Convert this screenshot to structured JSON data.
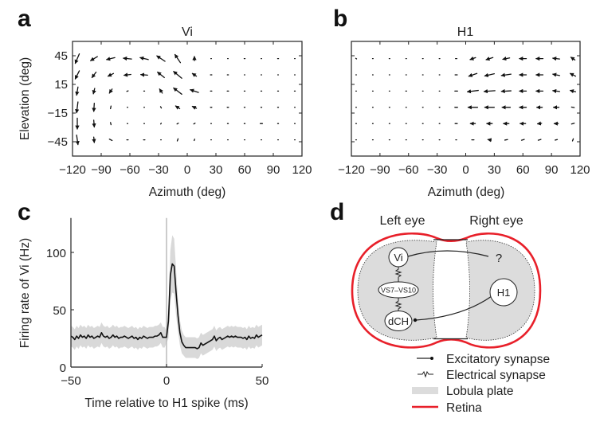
{
  "panel_labels": {
    "a": "a",
    "b": "b",
    "c": "c",
    "d": "d"
  },
  "chart_data": [
    {
      "type": "quiver",
      "title": "Vi",
      "xlabel": "Azimuth (deg)",
      "ylabel": "Elevation (deg)",
      "xlim": [
        -120,
        120
      ],
      "ylim": [
        -60,
        60
      ],
      "xticks": [
        "−120",
        "−90",
        "−60",
        "−30",
        "0",
        "30",
        "60",
        "90",
        "120"
      ],
      "xtick_values": [
        -120,
        -90,
        -60,
        -30,
        0,
        30,
        60,
        90,
        120
      ],
      "yticks": [
        "45",
        "15",
        "−15",
        "−45"
      ],
      "ytick_values": [
        45,
        15,
        -15,
        -45
      ],
      "azimuths": [
        -115,
        -97.5,
        -80,
        -62.5,
        -45,
        -27.5,
        -10,
        7.5,
        25,
        42.5,
        60,
        77.5,
        95,
        112.5
      ],
      "elevations": [
        42,
        25,
        8,
        -9,
        -26,
        -43
      ],
      "vectors": [
        [
          [
            -1.5,
            -3.5
          ],
          [
            -2.5,
            -1.5
          ],
          [
            -3,
            -0.7
          ],
          [
            -3,
            0.3
          ],
          [
            -3,
            0.7
          ],
          [
            -3,
            2
          ],
          [
            -2,
            3
          ],
          [
            0,
            1.5
          ],
          [
            0.2,
            0
          ],
          [
            0.2,
            0
          ],
          [
            0.3,
            0
          ],
          [
            0.2,
            0
          ],
          [
            0.3,
            0
          ],
          [
            0.2,
            0
          ]
        ],
        [
          [
            -1.5,
            -3
          ],
          [
            -1.5,
            -2
          ],
          [
            -2,
            -1
          ],
          [
            -2.5,
            -0.3
          ],
          [
            -2.5,
            0.2
          ],
          [
            -2.5,
            2
          ],
          [
            -3,
            2.5
          ],
          [
            -1.5,
            1
          ],
          [
            -0.5,
            0
          ],
          [
            -0.4,
            0
          ],
          [
            -0.2,
            0
          ],
          [
            -0.2,
            0
          ],
          [
            -0.2,
            0
          ],
          [
            -0.2,
            0
          ]
        ],
        [
          [
            -0.5,
            -3
          ],
          [
            -0.5,
            -2
          ],
          [
            -1,
            -1.5
          ],
          [
            -0.5,
            -0.2
          ],
          [
            -0.3,
            0
          ],
          [
            -1,
            1.5
          ],
          [
            -3,
            2.3
          ],
          [
            -3,
            1
          ],
          [
            -0.5,
            0
          ],
          [
            -0.5,
            0
          ],
          [
            -0.3,
            0
          ],
          [
            -0.3,
            0
          ],
          [
            -0.3,
            0
          ],
          [
            -0.3,
            0
          ]
        ],
        [
          [
            -0.5,
            -4
          ],
          [
            -0.2,
            -3
          ],
          [
            -0.2,
            -1
          ],
          [
            -0.2,
            0
          ],
          [
            -0.2,
            0
          ],
          [
            -0.3,
            0.5
          ],
          [
            -1.5,
            1
          ],
          [
            -1.5,
            0.7
          ],
          [
            -0.5,
            0
          ],
          [
            -0.5,
            0
          ],
          [
            -0.3,
            0
          ],
          [
            -0.3,
            0
          ],
          [
            -0.3,
            0
          ],
          [
            -0.2,
            0
          ]
        ],
        [
          [
            0,
            -4
          ],
          [
            0.2,
            -2.5
          ],
          [
            0.2,
            -0.8
          ],
          [
            0.2,
            0
          ],
          [
            0.2,
            0
          ],
          [
            0.2,
            0.3
          ],
          [
            0.5,
            0.3
          ],
          [
            0.5,
            0.3
          ],
          [
            0.2,
            0
          ],
          [
            0.3,
            0
          ],
          [
            0.3,
            0
          ],
          [
            0.8,
            0
          ],
          [
            0.3,
            0
          ],
          [
            0.2,
            0
          ]
        ],
        [
          [
            0.5,
            -3.5
          ],
          [
            0.2,
            -2
          ],
          [
            1,
            -0.5
          ],
          [
            0.5,
            0
          ],
          [
            0.5,
            0
          ],
          [
            0.2,
            0
          ],
          [
            0.3,
            0.8
          ],
          [
            0.2,
            0.5
          ],
          [
            0.2,
            0
          ],
          [
            0.2,
            0
          ],
          [
            0.2,
            0
          ],
          [
            0.2,
            0
          ],
          [
            0.2,
            0
          ],
          [
            0.2,
            0
          ]
        ]
      ]
    },
    {
      "type": "quiver",
      "title": "H1",
      "xlabel": "Azimuth (deg)",
      "ylabel": "",
      "xlim": [
        -120,
        120
      ],
      "ylim": [
        -60,
        60
      ],
      "xticks": [
        "−120",
        "−90",
        "−60",
        "−30",
        "0",
        "30",
        "60",
        "90",
        "120"
      ],
      "xtick_values": [
        -120,
        -90,
        -60,
        -30,
        0,
        30,
        60,
        90,
        120
      ],
      "ytick_values": [
        45,
        15,
        -15,
        -45
      ],
      "azimuths": [
        -115,
        -97.5,
        -80,
        -62.5,
        -45,
        -27.5,
        -10,
        7.5,
        25,
        42.5,
        60,
        77.5,
        95,
        112.5
      ],
      "elevations": [
        42,
        25,
        8,
        -9,
        -26,
        -43
      ],
      "vectors": [
        [
          [
            0.3,
            -0.2
          ],
          [
            0.2,
            0
          ],
          [
            0.2,
            0
          ],
          [
            0.2,
            0
          ],
          [
            0.2,
            0
          ],
          [
            0.2,
            0
          ],
          [
            -0.5,
            0
          ],
          [
            -2,
            -0.7
          ],
          [
            -2.5,
            -0.8
          ],
          [
            -2.5,
            -0.5
          ],
          [
            -2.5,
            0
          ],
          [
            -2.5,
            0
          ],
          [
            -2.5,
            0.3
          ],
          [
            -1.5,
            1
          ]
        ],
        [
          [
            0.2,
            0
          ],
          [
            0.2,
            0
          ],
          [
            0.2,
            0
          ],
          [
            0.2,
            0
          ],
          [
            0.2,
            0
          ],
          [
            0.2,
            0
          ],
          [
            -0.8,
            0
          ],
          [
            -3,
            -1
          ],
          [
            -3.5,
            -0.8
          ],
          [
            -3.5,
            -0.5
          ],
          [
            -2.5,
            0
          ],
          [
            -2.5,
            0
          ],
          [
            -2.5,
            0.5
          ],
          [
            -2,
            1
          ]
        ],
        [
          [
            0.2,
            0
          ],
          [
            0.2,
            0
          ],
          [
            0.2,
            0
          ],
          [
            0.3,
            0
          ],
          [
            0.2,
            0
          ],
          [
            0.2,
            0
          ],
          [
            -1,
            0
          ],
          [
            -4,
            -0.5
          ],
          [
            -4,
            -0.3
          ],
          [
            -3.5,
            -0.2
          ],
          [
            -2.5,
            0
          ],
          [
            -2.5,
            0
          ],
          [
            -2.5,
            0.3
          ],
          [
            -2,
            0.5
          ]
        ],
        [
          [
            0.2,
            0
          ],
          [
            0.2,
            0
          ],
          [
            0.2,
            0
          ],
          [
            0.2,
            0
          ],
          [
            0.2,
            0
          ],
          [
            0.2,
            0
          ],
          [
            -1,
            0
          ],
          [
            -3.5,
            0
          ],
          [
            -3.5,
            0
          ],
          [
            -3,
            0
          ],
          [
            -2.5,
            0
          ],
          [
            -2,
            0
          ],
          [
            -2,
            0
          ],
          [
            -1,
            0.2
          ]
        ],
        [
          [
            0.2,
            0
          ],
          [
            0.2,
            0
          ],
          [
            0.2,
            0
          ],
          [
            0.2,
            0
          ],
          [
            0.2,
            0
          ],
          [
            0.2,
            0
          ],
          [
            -0.8,
            0
          ],
          [
            -1.8,
            0
          ],
          [
            -2,
            0
          ],
          [
            -2,
            0
          ],
          [
            -2,
            0
          ],
          [
            -1.5,
            -0.2
          ],
          [
            -1.5,
            0
          ],
          [
            -1,
            -0.3
          ]
        ],
        [
          [
            0.2,
            0
          ],
          [
            0.2,
            0
          ],
          [
            0.2,
            0
          ],
          [
            0.2,
            0
          ],
          [
            0.2,
            0
          ],
          [
            0.2,
            0
          ],
          [
            -0.3,
            0
          ],
          [
            -0.8,
            0
          ],
          [
            -1.2,
            0.2
          ],
          [
            -1,
            -0.2
          ],
          [
            -1,
            -0.3
          ],
          [
            -1,
            -0.3
          ],
          [
            -0.8,
            -0.2
          ],
          [
            -0.3,
            -0.8
          ]
        ]
      ]
    },
    {
      "type": "line",
      "title": "",
      "xlabel": "Time relative to H1 spike (ms)",
      "ylabel": "Firing rate of Vi (Hz)",
      "xlim": [
        -50,
        50
      ],
      "ylim": [
        0,
        130
      ],
      "xticks": [
        "−50",
        "0",
        "50"
      ],
      "xtick_values": [
        -50,
        0,
        50
      ],
      "yticks": [
        "100",
        "50",
        "0"
      ],
      "ytick_values": [
        100,
        50,
        0
      ],
      "vline_at": 0,
      "x_start": -50,
      "x_step": 1,
      "values": [
        27,
        26,
        24,
        27,
        25,
        28,
        26,
        27,
        25,
        28,
        26,
        27,
        25,
        26,
        27,
        26,
        30,
        27,
        26,
        27,
        25,
        26,
        28,
        26,
        27,
        25,
        26,
        26,
        27,
        26,
        25,
        26,
        27,
        25,
        26,
        24,
        26,
        25,
        27,
        26,
        25,
        26,
        26,
        26,
        27,
        27,
        28,
        30,
        26,
        26,
        26,
        40,
        80,
        90,
        88,
        65,
        45,
        30,
        22,
        19,
        17,
        17,
        17,
        17,
        17,
        17,
        16,
        17,
        21,
        19,
        20,
        21,
        22,
        23,
        24,
        27,
        23,
        25,
        26,
        24,
        25,
        26,
        27,
        26,
        27,
        26,
        27,
        26,
        26,
        26,
        25,
        26,
        24,
        27,
        25,
        26,
        25,
        28,
        26,
        27,
        28
      ],
      "band_halfwidth": [
        9,
        9,
        9,
        9,
        9,
        9,
        9,
        9,
        9,
        9,
        9,
        9,
        9,
        9,
        9,
        9,
        9,
        9,
        9,
        9,
        9,
        9,
        9,
        9,
        9,
        9,
        9,
        9,
        9,
        9,
        9,
        9,
        9,
        9,
        9,
        9,
        9,
        9,
        9,
        9,
        9,
        9,
        9,
        9,
        9,
        9,
        9,
        9,
        9,
        9,
        5,
        15,
        22,
        25,
        24,
        20,
        14,
        11,
        10,
        9,
        9,
        9,
        9,
        9,
        9,
        9,
        9,
        9,
        9,
        9,
        9,
        9,
        9,
        9,
        9,
        9,
        9,
        9,
        9,
        9,
        9,
        9,
        9,
        9,
        9,
        9,
        9,
        9,
        9,
        9,
        9,
        9,
        9,
        9,
        9,
        9,
        9,
        9,
        9,
        9,
        9
      ]
    }
  ],
  "diagram": {
    "left_eye": "Left eye",
    "right_eye": "Right eye",
    "nodes": {
      "vi": "Vi",
      "vs": "VS7–VS10",
      "dch": "dCH",
      "h1": "H1",
      "unknown": "?"
    },
    "legend": {
      "excitatory": "Excitatory synapse",
      "electrical": "Electrical synapse",
      "lobula": "Lobula plate",
      "retina": "Retina"
    },
    "colors": {
      "retina": "#e8202a",
      "lobula": "#dcdcdc",
      "band": "#d9d9d9"
    }
  }
}
